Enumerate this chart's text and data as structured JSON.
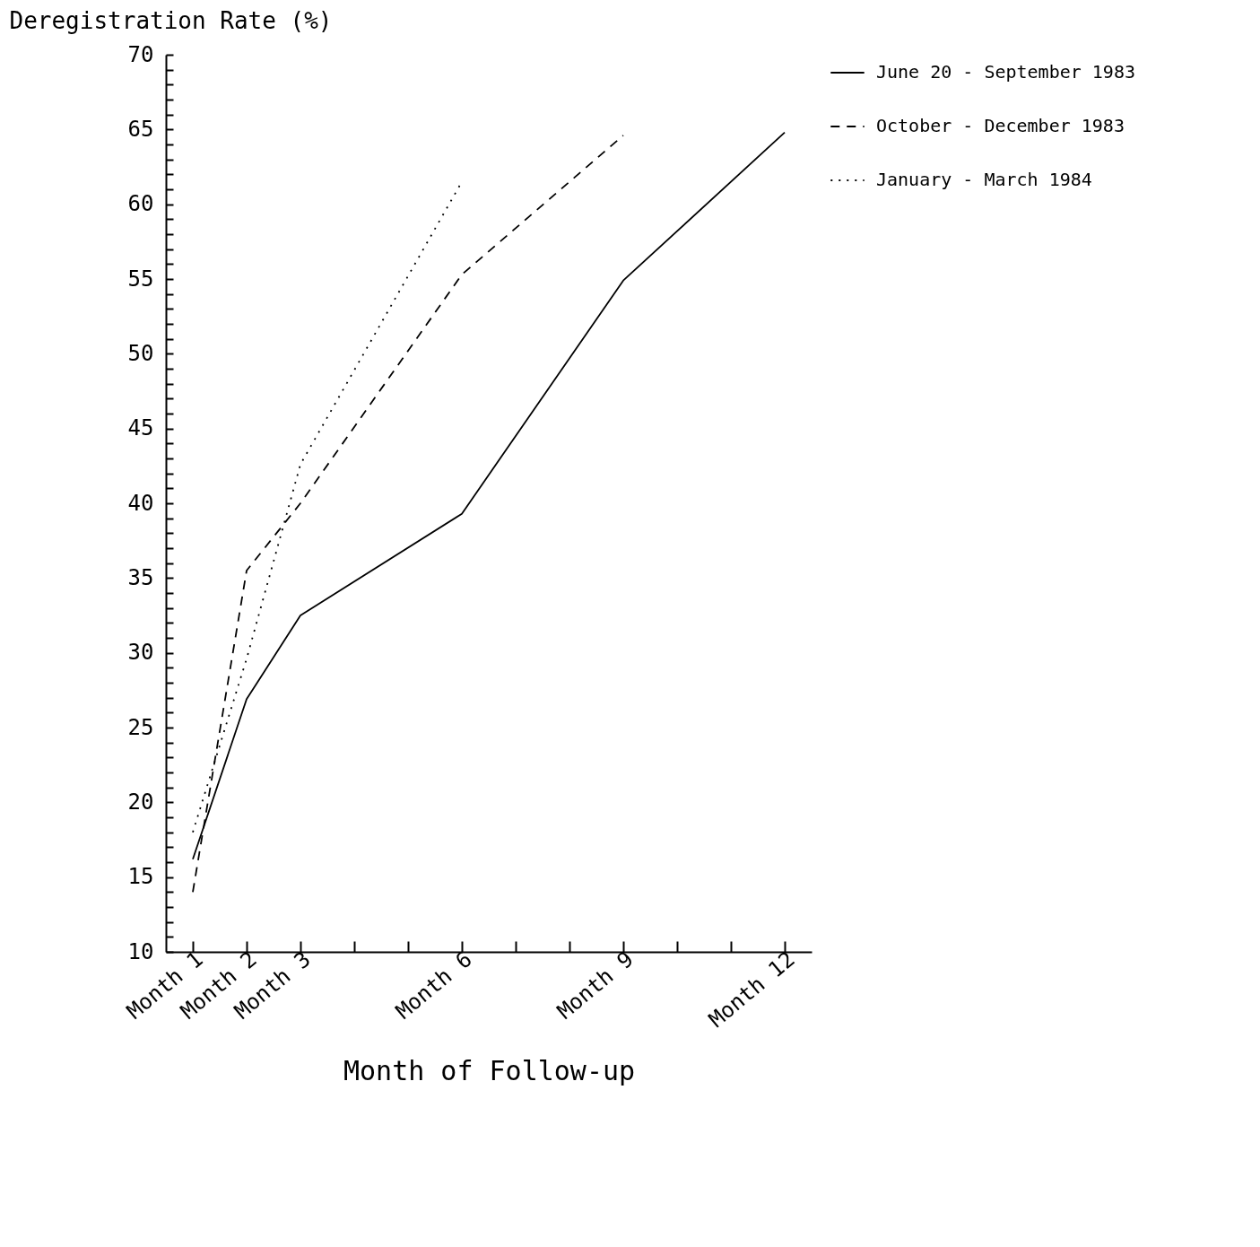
{
  "chart_data": {
    "type": "line",
    "xlabel": "Month of Follow-up",
    "ylabel": "Deregistration Rate (%)",
    "categories": [
      "Month 1",
      "Month 2",
      "Month 3",
      null,
      null,
      "Month 6",
      null,
      null,
      "Month 9",
      null,
      null,
      "Month 12"
    ],
    "ylim": [
      10,
      70
    ],
    "yticks": [
      10,
      {
        "value": 11,
        "label": null
      },
      {
        "value": 12,
        "label": null
      },
      {
        "value": 13,
        "label": null
      },
      {
        "value": 14,
        "label": null
      },
      15,
      {
        "value": 16,
        "label": null
      },
      {
        "value": 17,
        "label": null
      },
      {
        "value": 18,
        "label": null
      },
      {
        "value": 19,
        "label": null
      },
      20,
      {
        "value": 21,
        "label": null
      },
      {
        "value": 22,
        "label": null
      },
      {
        "value": 23,
        "label": null
      },
      {
        "value": 24,
        "label": null
      },
      25,
      {
        "value": 26,
        "label": null
      },
      {
        "value": 27,
        "label": null
      },
      {
        "value": 28,
        "label": null
      },
      {
        "value": 29,
        "label": null
      },
      30,
      {
        "value": 31,
        "label": null
      },
      {
        "value": 32,
        "label": null
      },
      {
        "value": 33,
        "label": null
      },
      {
        "value": 34,
        "label": null
      },
      35,
      {
        "value": 36,
        "label": null
      },
      {
        "value": 37,
        "label": null
      },
      {
        "value": 38,
        "label": null
      },
      {
        "value": 39,
        "label": null
      },
      40,
      {
        "value": 41,
        "label": null
      },
      {
        "value": 42,
        "label": null
      },
      {
        "value": 43,
        "label": null
      },
      {
        "value": 44,
        "label": null
      },
      45,
      {
        "value": 46,
        "label": null
      },
      {
        "value": 47,
        "label": null
      },
      {
        "value": 48,
        "label": null
      },
      {
        "value": 49,
        "label": null
      },
      50,
      {
        "value": 51,
        "label": null
      },
      {
        "value": 52,
        "label": null
      },
      {
        "value": 53,
        "label": null
      },
      {
        "value": 54,
        "label": null
      },
      55,
      {
        "value": 56,
        "label": null
      },
      {
        "value": 57,
        "label": null
      },
      {
        "value": 58,
        "label": null
      },
      {
        "value": 59,
        "label": null
      },
      60,
      {
        "value": 61,
        "label": null
      },
      {
        "value": 62,
        "label": null
      },
      {
        "value": 63,
        "label": null
      },
      {
        "value": 64,
        "label": null
      },
      65,
      {
        "value": 66,
        "label": null
      },
      {
        "value": 67,
        "label": null
      },
      {
        "value": 68,
        "label": null
      },
      {
        "value": 69,
        "label": null
      },
      70
    ],
    "grid": false,
    "legend": "right",
    "marker": "none",
    "series": [
      {
        "name": "June 20 - September 1983",
        "color": "#000000",
        "line_style": "solid",
        "x": [
          "Month 1",
          "Month 2",
          "Month 3",
          "Month 6",
          "Month 9",
          "Month 12"
        ],
        "values": [
          16.2,
          26.9,
          32.5,
          39.3,
          54.9,
          64.8
        ]
      },
      {
        "name": "October - December 1983",
        "color": "#000000",
        "line_style": "dashed",
        "x": [
          "Month 1",
          "Month 2",
          "Month 3",
          "Month 6",
          "Month 9"
        ],
        "values": [
          14,
          35.5,
          40,
          55.3,
          64.6
        ]
      },
      {
        "name": "January - March 1984",
        "color": "#000000",
        "line_style": "dotted",
        "x": [
          "Month 1",
          "Month 2",
          "Month 3",
          "Month 6"
        ],
        "values": [
          18,
          29.6,
          42.6,
          61.5
        ]
      }
    ]
  }
}
